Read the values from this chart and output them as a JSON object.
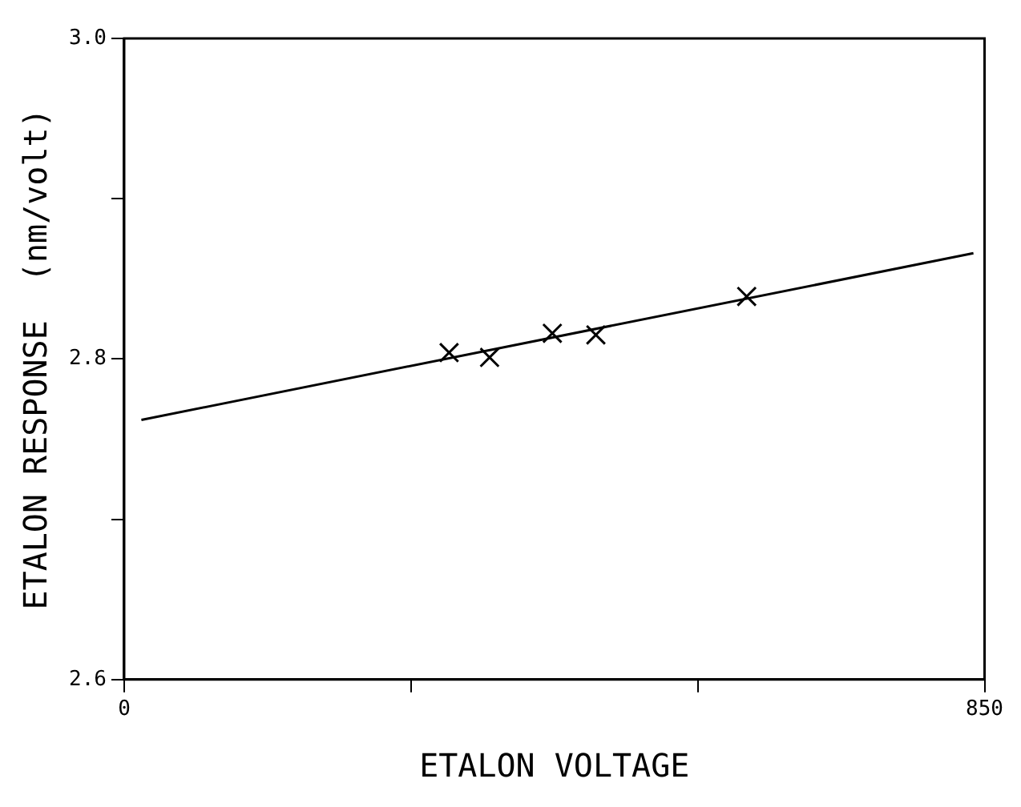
{
  "chart_data": {
    "type": "scatter",
    "xlabel": "ETALON VOLTAGE",
    "ylabel": "ETALON RESPONSE  (nm/volt)",
    "xlim": [
      0,
      850
    ],
    "xticks": [
      0,
      {
        "value": 283.3,
        "label": null
      },
      {
        "value": 566.7,
        "label": null
      },
      850
    ],
    "ylim": [
      2.6,
      3.0
    ],
    "yticks": [
      {
        "value": 2.6,
        "label": "2.6"
      },
      {
        "value": 2.7,
        "label": null
      },
      {
        "value": 2.8,
        "label": "2.8"
      },
      {
        "value": 2.9,
        "label": null
      },
      {
        "value": 3.0,
        "label": "3.0"
      }
    ],
    "grid": false,
    "legend": false,
    "marker": "cross",
    "series": [
      {
        "type": "scatter",
        "color": "#000000",
        "x": [
          321,
          361,
          423,
          466,
          615
        ],
        "values": [
          2.804,
          2.801,
          2.816,
          2.815,
          2.839
        ]
      },
      {
        "type": "line",
        "color": "#000000",
        "x": [
          17,
          839
        ],
        "values": [
          2.762,
          2.866
        ],
        "marker": "none",
        "line_style": "solid"
      }
    ]
  }
}
